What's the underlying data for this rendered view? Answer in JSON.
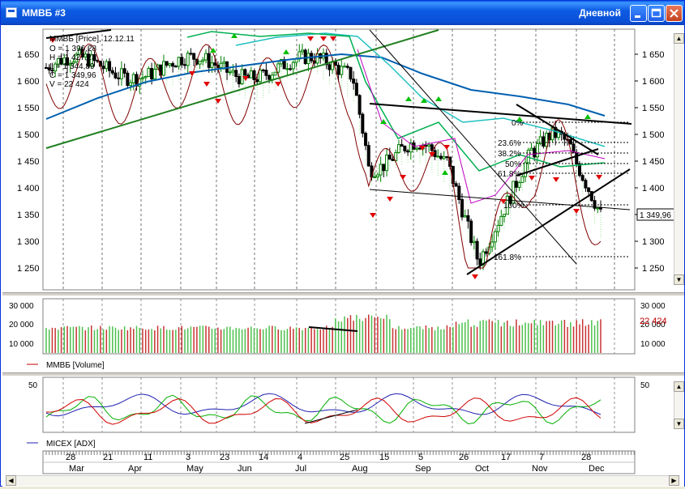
{
  "window": {
    "title": "ММВБ #3",
    "timeframe": "Дневной"
  },
  "price_panel": {
    "ticker_label": "ММВБ [Price], 12.12.11",
    "ohlc": [
      "O = 1 396,28",
      "H = 1 427,23",
      "L = 1 344,89",
      "C = 1 349,96",
      "V = 22 424"
    ],
    "y_ticks": [
      "1 650",
      "1 600",
      "1 550",
      "1 500",
      "1 450",
      "1 400",
      "1 350",
      "1 300",
      "1 250"
    ],
    "last_price": "1 349,96",
    "fib_labels": [
      "0%",
      "23.6%",
      "38.2%",
      "50%",
      "61.8%",
      "100%",
      "161.8%"
    ]
  },
  "volume_panel": {
    "y_ticks": [
      "30 000",
      "20 000",
      "10 000"
    ],
    "last_volume": "22 424",
    "legend": "ММВБ [Volume]"
  },
  "adx_panel": {
    "y_ticks": [
      "50"
    ],
    "legend": "MICEX [ADX]"
  },
  "time_axis": {
    "days": [
      "28",
      "21",
      "11",
      "3",
      "23",
      "14",
      "4",
      "25",
      "15",
      "5",
      "26",
      "17",
      "7",
      "28"
    ],
    "months": [
      "Mar",
      "Apr",
      "May",
      "Jun",
      "Jul",
      "Aug",
      "Sep",
      "Oct",
      "Nov",
      "Dec"
    ]
  },
  "colors": {
    "titlebar": "#0A4FD6",
    "up_candle": "#00A000",
    "down_candle": "#E00000",
    "ma_blue": "#0060B0",
    "ma_green": "#00B050",
    "volume_up": "#4CC04C",
    "volume_down": "#C83232"
  }
}
